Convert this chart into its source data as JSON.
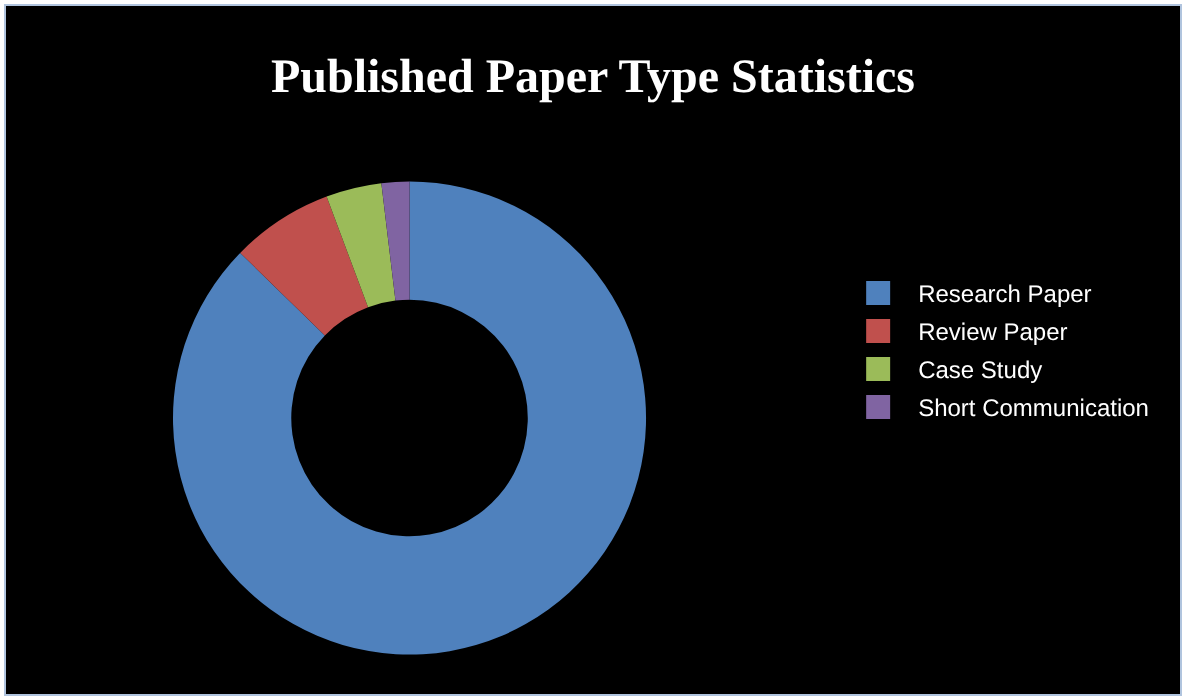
{
  "chart_data": {
    "type": "donut",
    "title": "Published Paper Type Statistics",
    "categories": [
      "Research Paper",
      "Review Paper",
      "Case Study",
      "Short Communication"
    ],
    "values": [
      87.3,
      7,
      3.8,
      1.9
    ],
    "colors": [
      "#4f81bd",
      "#c0504d",
      "#9bbb59",
      "#8064a2"
    ],
    "legend": "right"
  }
}
